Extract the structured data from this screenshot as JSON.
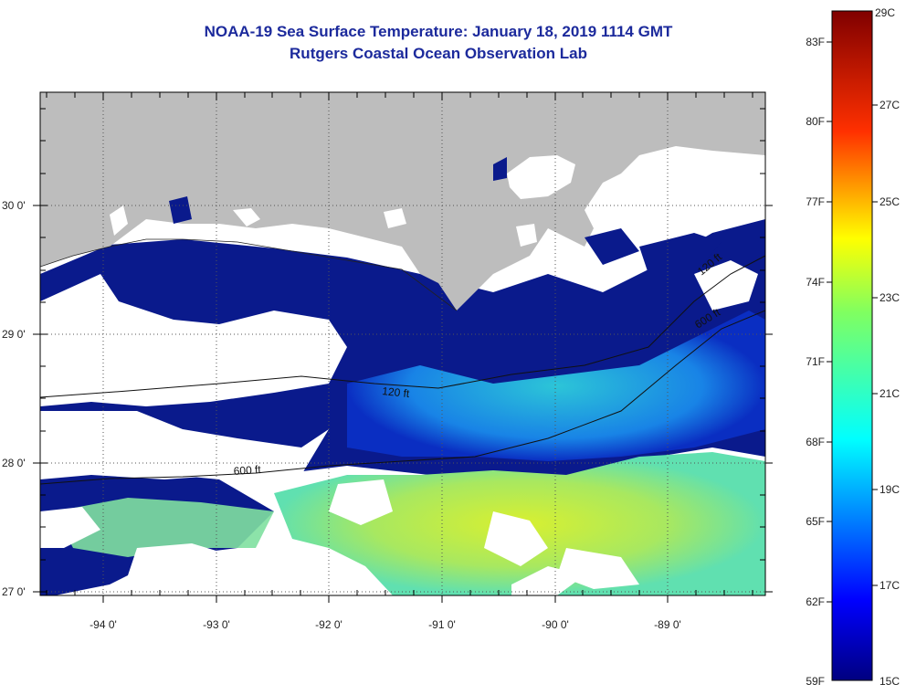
{
  "title": {
    "line1": "NOAA-19 Sea Surface Temperature:  January 18, 2019 1114 GMT",
    "line2": "Rutgers Coastal Ocean Observation Lab"
  },
  "axes": {
    "lon_labels": [
      "-94 0'",
      "-93 0'",
      "-92 0'",
      "-91 0'",
      "-90 0'",
      "-89 0'"
    ],
    "lat_labels": [
      "30 0'",
      "29 0'",
      "28 0'",
      "27 0'"
    ]
  },
  "contours": {
    "label_120": "120 ft",
    "label_600": "600 ft"
  },
  "colorbar": {
    "fahrenheit": [
      "83F",
      "80F",
      "77F",
      "74F",
      "71F",
      "68F",
      "65F",
      "62F",
      "59F"
    ],
    "celsius": [
      "29C",
      "27C",
      "25C",
      "23C",
      "21C",
      "19C",
      "17C",
      "15C"
    ]
  },
  "colors": {
    "land": "#bdbdbd",
    "cloud": "#ffffff",
    "cold": "#0a1a8c",
    "title": "#1c2a9c"
  }
}
